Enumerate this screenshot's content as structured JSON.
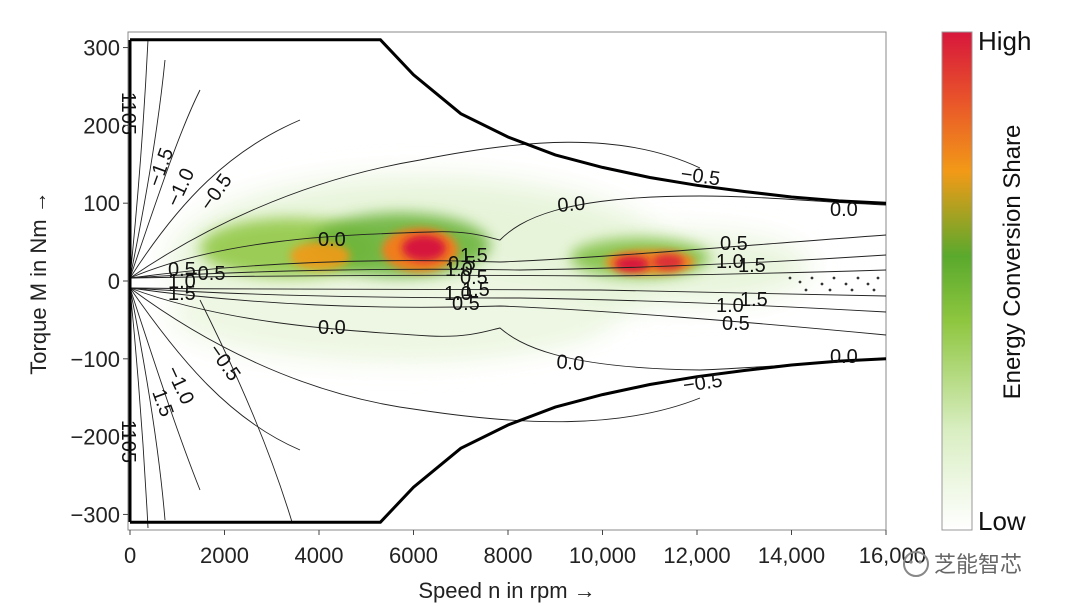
{
  "chart_data": {
    "type": "heatmap",
    "title": "",
    "xlabel": "Speed n in rpm →",
    "ylabel": "Torque M in Nm →",
    "xlim": [
      0,
      16000
    ],
    "ylim": [
      -320,
      320
    ],
    "x_ticks": [
      0,
      2000,
      4000,
      6000,
      8000,
      10000,
      12000,
      14000,
      16000
    ],
    "x_tick_labels": [
      "0",
      "2000",
      "4000",
      "6000",
      "8000",
      "10,000",
      "12,000",
      "14,000",
      "16,000"
    ],
    "y_ticks": [
      300,
      200,
      100,
      0,
      -100,
      -200,
      -300
    ],
    "y_tick_labels": [
      "300",
      "200",
      "100",
      "0",
      "−100",
      "−200",
      "−300"
    ],
    "max_torque_envelope": {
      "speed": [
        0,
        5300,
        6000,
        7000,
        8000,
        9000,
        10000,
        11000,
        12000,
        13000,
        14000,
        15000,
        16000
      ],
      "torque": [
        310,
        310,
        265,
        215,
        185,
        162,
        146,
        133,
        123,
        115,
        108,
        103,
        100
      ]
    },
    "colorbar": {
      "title": "Energy Conversion Share",
      "high_label": "High",
      "low_label": "Low",
      "colors": [
        "#ffffff",
        "#d9eec2",
        "#8ec63f",
        "#5aa92d",
        "#f29a17",
        "#e9552a",
        "#d7173c"
      ]
    },
    "contour_labels": [
      "1105",
      "−1.5",
      "−1.0",
      "−0.5",
      "0.0",
      "0.0",
      "−0.5",
      "0.0",
      "0.5",
      "1.0",
      "1.5",
      "1.0",
      "1.5",
      "0.5",
      "1.0",
      "1.5",
      "0.5",
      "0.0",
      "0.0",
      "0.0",
      "−0.5",
      "−1.0",
      "1.5",
      "−0.5",
      "1105",
      "0.5",
      "1.0",
      "1.5",
      "0.5",
      "1.0",
      "1.5",
      "0.5",
      "−0.5"
    ],
    "hotspots": [
      {
        "speed": 3800,
        "torque": 25,
        "intensity": 0.6
      },
      {
        "speed": 6300,
        "torque": 30,
        "intensity": 0.95
      },
      {
        "speed": 10500,
        "torque": 22,
        "intensity": 0.9
      },
      {
        "speed": 11300,
        "torque": 20,
        "intensity": 0.85
      }
    ]
  },
  "watermark": {
    "text": "芝能智芯"
  }
}
